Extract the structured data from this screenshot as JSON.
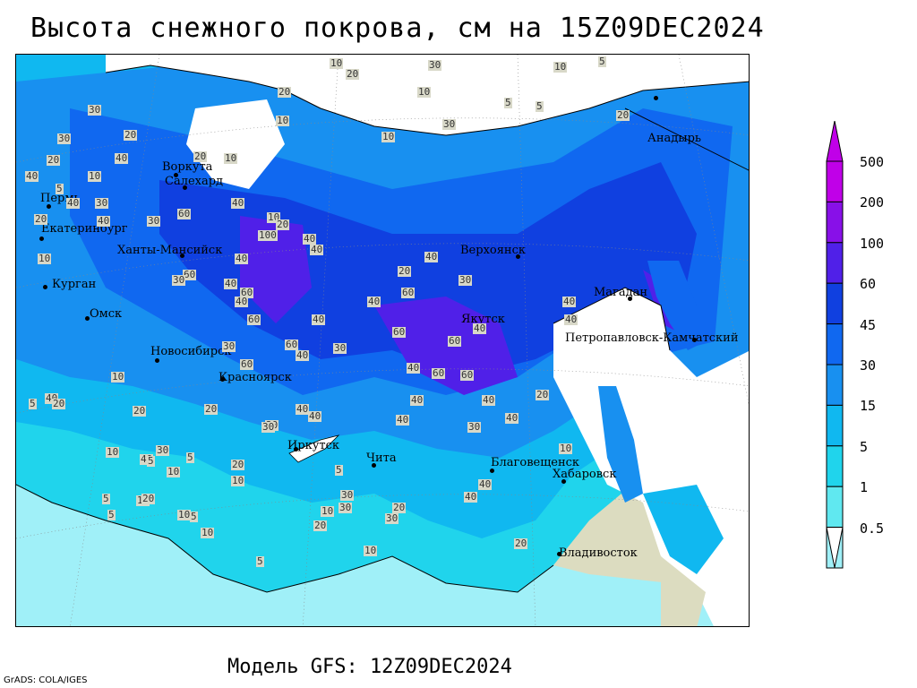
{
  "title": "Высота снежного покрова, см на 15Z09DEC2024",
  "model": "Модель GFS: 12Z09DEC2024",
  "credit": "GrADS: COLA/IGES",
  "legend": {
    "levels": [
      "0.5",
      "1",
      "5",
      "15",
      "30",
      "45",
      "60",
      "100",
      "200",
      "500"
    ],
    "colors": [
      "#a0f0f8",
      "#60e8f0",
      "#20d4ec",
      "#10b8f0",
      "#1890f0",
      "#1068f0",
      "#1040e0",
      "#5020e8",
      "#8810e8",
      "#c000e8"
    ]
  },
  "cities": [
    {
      "name": "Анадырь"
    },
    {
      "name": "Воркута"
    },
    {
      "name": "Салехард"
    },
    {
      "name": "Пермь"
    },
    {
      "name": "Екатеринбург"
    },
    {
      "name": "Ханты-Мансийск"
    },
    {
      "name": "Курган"
    },
    {
      "name": "Омск"
    },
    {
      "name": "Новосибирск"
    },
    {
      "name": "Красноярск"
    },
    {
      "name": "Иркутск"
    },
    {
      "name": "Чита"
    },
    {
      "name": "Верхоянск"
    },
    {
      "name": "Якутск"
    },
    {
      "name": "Магадан"
    },
    {
      "name": "Петропавловск-Камчатский"
    },
    {
      "name": "Благовещенск"
    },
    {
      "name": "Хабаровск"
    },
    {
      "name": "Владивосток"
    }
  ],
  "contour_labels": [
    "10",
    "20",
    "30",
    "10",
    "5",
    "20",
    "10",
    "5",
    "10",
    "30",
    "20",
    "10",
    "5",
    "30",
    "20",
    "40",
    "20",
    "30",
    "40",
    "10",
    "20",
    "10",
    "5",
    "40",
    "30",
    "20",
    "10",
    "40",
    "60",
    "40",
    "30",
    "20",
    "40",
    "100",
    "40",
    "60",
    "40",
    "10",
    "40",
    "20",
    "40",
    "30",
    "60",
    "30",
    "40",
    "60",
    "40",
    "40",
    "60",
    "60",
    "40",
    "60",
    "60",
    "40",
    "40",
    "60",
    "60",
    "40",
    "30",
    "30",
    "60",
    "40",
    "40",
    "40",
    "40",
    "20",
    "40",
    "20",
    "20",
    "30",
    "40",
    "40",
    "30",
    "40",
    "40",
    "20",
    "10",
    "20",
    "30",
    "5",
    "10",
    "5",
    "10",
    "5",
    "10",
    "20",
    "5",
    "10",
    "5",
    "20",
    "5",
    "10",
    "20",
    "30",
    "30",
    "40",
    "40",
    "30",
    "20",
    "5",
    "10",
    "10",
    "5",
    "20",
    "10",
    "10"
  ]
}
